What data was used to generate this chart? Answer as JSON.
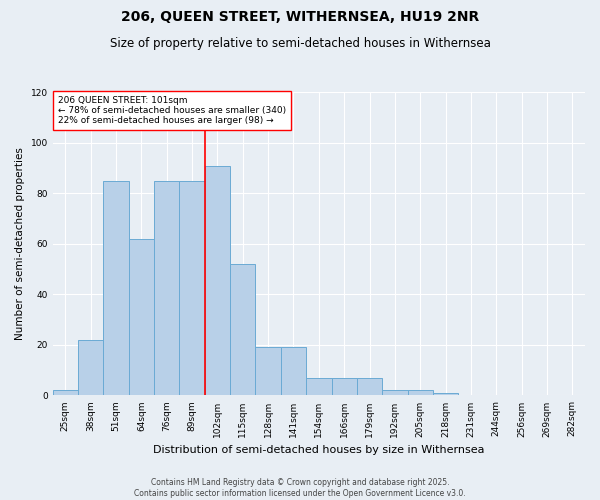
{
  "title": "206, QUEEN STREET, WITHERNSEA, HU19 2NR",
  "subtitle": "Size of property relative to semi-detached houses in Withernsea",
  "xlabel": "Distribution of semi-detached houses by size in Withernsea",
  "ylabel": "Number of semi-detached properties",
  "bins": [
    "25sqm",
    "38sqm",
    "51sqm",
    "64sqm",
    "76sqm",
    "89sqm",
    "102sqm",
    "115sqm",
    "128sqm",
    "141sqm",
    "154sqm",
    "166sqm",
    "179sqm",
    "192sqm",
    "205sqm",
    "218sqm",
    "231sqm",
    "244sqm",
    "256sqm",
    "269sqm",
    "282sqm"
  ],
  "values": [
    2,
    22,
    85,
    62,
    85,
    85,
    91,
    52,
    19,
    19,
    7,
    7,
    7,
    2,
    2,
    1,
    0,
    0,
    0,
    0,
    0
  ],
  "bar_color": "#b8d0e8",
  "bar_edge_color": "#6aaad4",
  "vline_color": "red",
  "annotation_text": "206 QUEEN STREET: 101sqm\n← 78% of semi-detached houses are smaller (340)\n22% of semi-detached houses are larger (98) →",
  "annotation_box_color": "white",
  "annotation_box_edge": "red",
  "ylim": [
    0,
    120
  ],
  "yticks": [
    0,
    20,
    40,
    60,
    80,
    100,
    120
  ],
  "bg_color": "#e8eef4",
  "footer": "Contains HM Land Registry data © Crown copyright and database right 2025.\nContains public sector information licensed under the Open Government Licence v3.0.",
  "title_fontsize": 10,
  "subtitle_fontsize": 8.5,
  "ylabel_fontsize": 7.5,
  "xlabel_fontsize": 8,
  "tick_fontsize": 6.5,
  "annot_fontsize": 6.5,
  "footer_fontsize": 5.5
}
